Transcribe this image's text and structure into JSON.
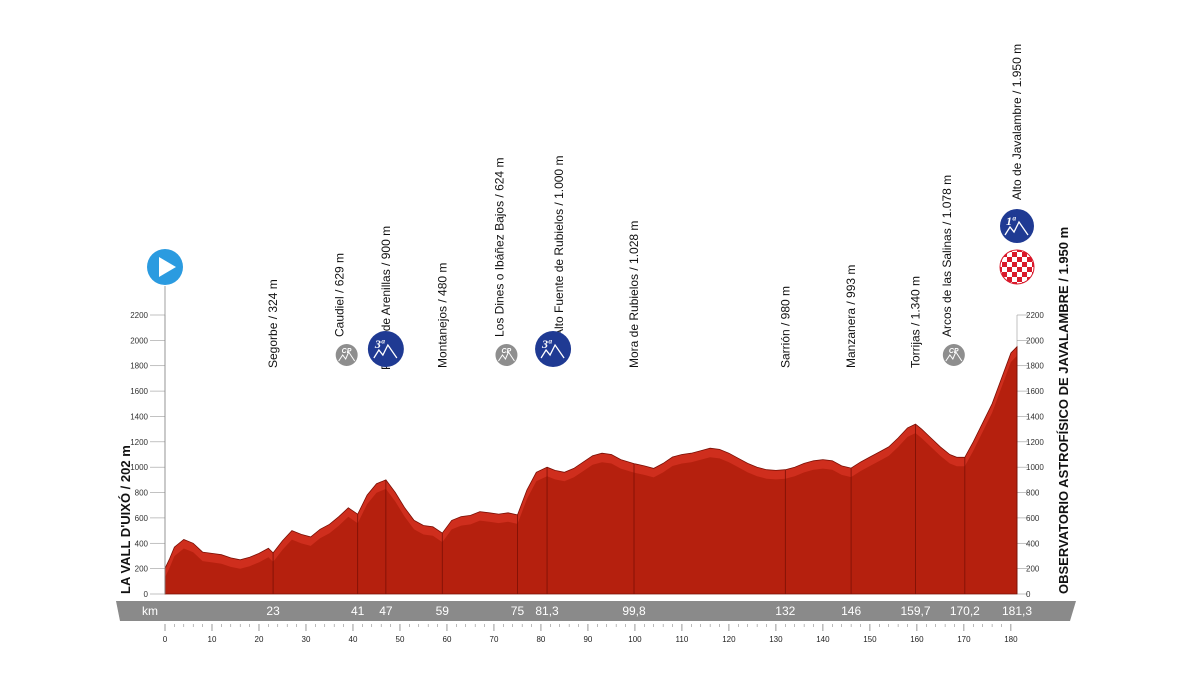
{
  "chart_data": {
    "type": "area",
    "title": "",
    "xlabel": "km",
    "ylabel": "",
    "xlim": [
      0,
      181.3
    ],
    "ylim": [
      0,
      2200
    ],
    "x_ticks": [
      0,
      10,
      20,
      30,
      40,
      50,
      60,
      70,
      80,
      90,
      100,
      110,
      120,
      130,
      140,
      150,
      160,
      170,
      180
    ],
    "y_ticks": [
      0,
      200,
      400,
      600,
      800,
      1000,
      1200,
      1400,
      1600,
      1800,
      2000,
      2200
    ],
    "start_label": "LA VALL D'UIXÓ / 202 m",
    "finish_label": "OBSERVATORIO ASTROFÍSICO DE JAVALAMBRE / 1.950 m",
    "profile_color": "#b5200e",
    "start_icon_color": "#2b9be0",
    "badge_color": "#1f3a93",
    "cp_color": "#8e8e8e",
    "series": [
      {
        "x": [
          0,
          1,
          2,
          4,
          6,
          8,
          10,
          12,
          14,
          16,
          18,
          20,
          22,
          23,
          25,
          27,
          29,
          31,
          33,
          35,
          37,
          39,
          41,
          43,
          45,
          47,
          49,
          51,
          53,
          55,
          57,
          59,
          61,
          63,
          65,
          67,
          69,
          71,
          73,
          75,
          77,
          79,
          81.3,
          83,
          85,
          87,
          89,
          91,
          93,
          95,
          97,
          99.8,
          102,
          104,
          106,
          108,
          110,
          112,
          114,
          116,
          118,
          120,
          122,
          124,
          126,
          128,
          130,
          132,
          134,
          136,
          138,
          140,
          142,
          144,
          146,
          148,
          150,
          152,
          154,
          156,
          158,
          159.7,
          161,
          163,
          165,
          167,
          168.5,
          170.2,
          172,
          174,
          176,
          178,
          180,
          181.3
        ],
        "values": [
          202,
          280,
          370,
          430,
          400,
          330,
          320,
          310,
          285,
          270,
          290,
          320,
          360,
          324,
          420,
          500,
          470,
          450,
          510,
          550,
          610,
          680,
          629,
          780,
          870,
          900,
          800,
          680,
          580,
          540,
          530,
          480,
          580,
          610,
          620,
          650,
          640,
          630,
          640,
          624,
          820,
          960,
          1000,
          975,
          960,
          990,
          1040,
          1090,
          1110,
          1100,
          1060,
          1028,
          1010,
          990,
          1030,
          1080,
          1100,
          1110,
          1130,
          1150,
          1140,
          1110,
          1070,
          1030,
          1000,
          980,
          975,
          980,
          1000,
          1030,
          1050,
          1060,
          1050,
          1010,
          993,
          1040,
          1080,
          1120,
          1160,
          1230,
          1310,
          1340,
          1300,
          1230,
          1160,
          1100,
          1078,
          1078,
          1200,
          1350,
          1500,
          1700,
          1900,
          1950
        ]
      }
    ],
    "points": [
      {
        "km": 23,
        "km_label": "23",
        "name": "Segorbe / 324 m",
        "badge": ""
      },
      {
        "km": 41,
        "km_label": "41",
        "name": "Caudiel / 629 m",
        "badge": "CP"
      },
      {
        "km": 47,
        "km_label": "47",
        "name": "Puerto de Arenillas / 900 m",
        "badge": "3ª"
      },
      {
        "km": 59,
        "km_label": "59",
        "name": "Montanejos / 480 m",
        "badge": ""
      },
      {
        "km": 75,
        "km_label": "75",
        "name": "Los Dines o Ibáñez Bajos / 624 m",
        "badge": "CP"
      },
      {
        "km": 81.3,
        "km_label": "81,3",
        "name": "Alto Fuente de Rubielos / 1.000 m",
        "badge": "3ª"
      },
      {
        "km": 99.8,
        "km_label": "99,8",
        "name": "Mora de Rubielos / 1.028 m",
        "badge": ""
      },
      {
        "km": 132,
        "km_label": "132",
        "name": "Sarrión / 980 m",
        "badge": ""
      },
      {
        "km": 146,
        "km_label": "146",
        "name": "Manzanera / 993 m",
        "badge": ""
      },
      {
        "km": 159.7,
        "km_label": "159,7",
        "name": "Torrijas / 1.340 m",
        "badge": ""
      },
      {
        "km": 170.2,
        "km_label": "170,2",
        "name": "Arcos de las Salinas / 1.078 m",
        "badge": "CP"
      },
      {
        "km": 181.3,
        "km_label": "181,3",
        "name": "Alto de Javalambre / 1.950 m",
        "badge": "1ª"
      }
    ]
  }
}
